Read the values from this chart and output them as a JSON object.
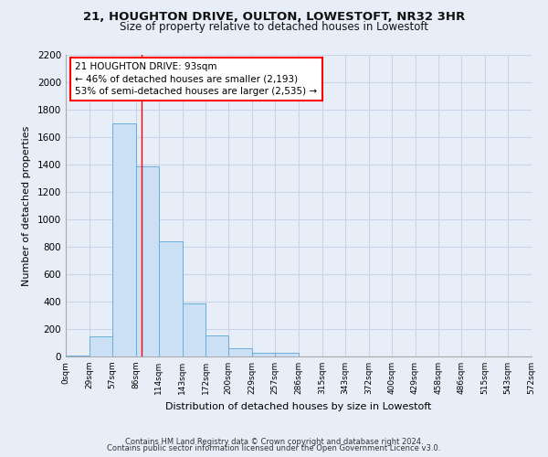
{
  "title1": "21, HOUGHTON DRIVE, OULTON, LOWESTOFT, NR32 3HR",
  "title2": "Size of property relative to detached houses in Lowestoft",
  "xlabel": "Distribution of detached houses by size in Lowestoft",
  "ylabel": "Number of detached properties",
  "footer1": "Contains HM Land Registry data © Crown copyright and database right 2024.",
  "footer2": "Contains public sector information licensed under the Open Government Licence v3.0.",
  "bins": [
    0,
    29,
    57,
    86,
    114,
    143,
    172,
    200,
    229,
    257,
    286,
    315,
    343,
    372,
    400,
    429,
    458,
    486,
    515,
    543,
    572
  ],
  "values": [
    10,
    150,
    1700,
    1390,
    840,
    390,
    155,
    60,
    30,
    25,
    0,
    0,
    0,
    0,
    0,
    0,
    0,
    0,
    0,
    0
  ],
  "bar_color": "#cce0f5",
  "bar_edge_color": "#6aaed6",
  "grid_color": "#c8d4e8",
  "vline_x": 93,
  "vline_color": "red",
  "annotation_text": "21 HOUGHTON DRIVE: 93sqm\n← 46% of detached houses are smaller (2,193)\n53% of semi-detached houses are larger (2,535) →",
  "annotation_box_color": "white",
  "annotation_box_edge": "red",
  "ylim": [
    0,
    2200
  ],
  "yticks": [
    0,
    200,
    400,
    600,
    800,
    1000,
    1200,
    1400,
    1600,
    1800,
    2000,
    2200
  ],
  "background_color": "#e8eef8"
}
